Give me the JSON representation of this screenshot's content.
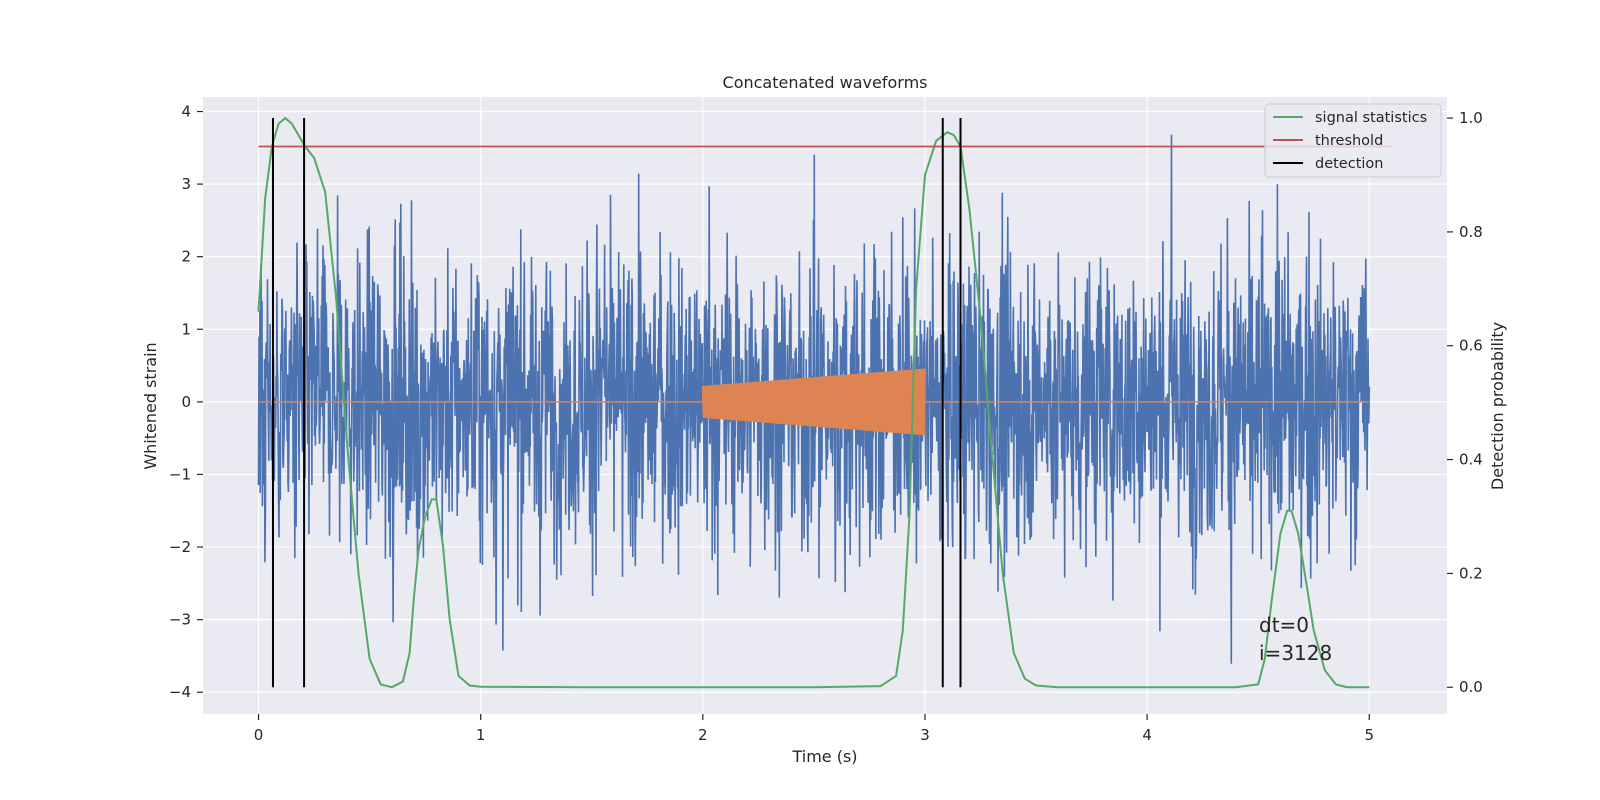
{
  "chart_data": {
    "type": "line",
    "title": "Concatenated waveforms",
    "xlabel": "Time (s)",
    "ylabel": "Whitened strain",
    "ylabel_right": "Detection probability",
    "xlim": [
      -0.25,
      5.35
    ],
    "ylim": [
      -4.3,
      4.2
    ],
    "ylim_right": [
      -0.047,
      1.037
    ],
    "x_ticks": [
      0,
      1,
      2,
      3,
      4,
      5
    ],
    "x_tick_labels": [
      "0",
      "1",
      "2",
      "3",
      "4",
      "5"
    ],
    "y_ticks": [
      -4,
      -3,
      -2,
      -1,
      0,
      1,
      2,
      3,
      4
    ],
    "y_tick_labels": [
      "−4",
      "−3",
      "−2",
      "−1",
      "0",
      "1",
      "2",
      "3",
      "4"
    ],
    "y_right_ticks": [
      0.0,
      0.2,
      0.4,
      0.6,
      0.8,
      1.0
    ],
    "y_right_tick_labels": [
      "0.0",
      "0.2",
      "0.4",
      "0.6",
      "0.8",
      "1.0"
    ],
    "grid": true,
    "legend_position": "top-right",
    "series": [
      {
        "name": "",
        "kind": "whitened_strain_noise",
        "axis": "left",
        "color": "#4c72b0",
        "x_range": [
          0,
          5
        ],
        "typical_amplitude": 1.0,
        "max_peak": 3.8,
        "min_peak": -3.9
      },
      {
        "name": "",
        "kind": "injected_chirp",
        "axis": "left",
        "color": "#dd8452",
        "x_range": [
          0,
          5
        ],
        "chirp_x_range": [
          2.0,
          3.0
        ],
        "chirp_amplitude_start": 0.22,
        "chirp_amplitude_end": 0.46
      },
      {
        "name": "signal statistics",
        "axis": "right",
        "color": "#55a868",
        "x": [
          0,
          0.03,
          0.06,
          0.09,
          0.12,
          0.15,
          0.18,
          0.21,
          0.25,
          0.3,
          0.35,
          0.4,
          0.45,
          0.5,
          0.55,
          0.6,
          0.65,
          0.68,
          0.7,
          0.72,
          0.75,
          0.78,
          0.8,
          0.83,
          0.86,
          0.9,
          0.95,
          1.0,
          1.5,
          2.0,
          2.5,
          2.8,
          2.87,
          2.9,
          2.93,
          2.96,
          3.0,
          3.05,
          3.1,
          3.13,
          3.16,
          3.2,
          3.25,
          3.3,
          3.35,
          3.4,
          3.45,
          3.5,
          3.6,
          4.0,
          4.4,
          4.5,
          4.53,
          4.56,
          4.6,
          4.63,
          4.65,
          4.68,
          4.71,
          4.75,
          4.8,
          4.85,
          4.9,
          5.0
        ],
        "values": [
          0.66,
          0.86,
          0.95,
          0.99,
          1.0,
          0.99,
          0.97,
          0.95,
          0.93,
          0.87,
          0.68,
          0.42,
          0.2,
          0.05,
          0.005,
          0.0,
          0.01,
          0.06,
          0.16,
          0.24,
          0.3,
          0.33,
          0.33,
          0.25,
          0.12,
          0.02,
          0.003,
          0.001,
          0.0,
          0.0,
          0.0,
          0.002,
          0.02,
          0.1,
          0.3,
          0.7,
          0.9,
          0.96,
          0.975,
          0.97,
          0.95,
          0.84,
          0.65,
          0.42,
          0.2,
          0.06,
          0.015,
          0.003,
          0.0,
          0.0,
          0.0,
          0.005,
          0.05,
          0.15,
          0.27,
          0.31,
          0.31,
          0.27,
          0.2,
          0.1,
          0.03,
          0.005,
          0.0,
          0.0
        ]
      },
      {
        "name": "threshold",
        "axis": "right",
        "color": "#c44e52",
        "x": [
          0,
          5.1
        ],
        "values": [
          0.95,
          0.95
        ]
      },
      {
        "name": "detection",
        "axis": "right",
        "color": "#000000",
        "kind": "vertical_lines",
        "x": [
          0.065,
          0.205,
          3.08,
          3.16
        ],
        "y_range": [
          0.0,
          1.0
        ]
      }
    ],
    "annotations": [
      "dt=0",
      "i=3128"
    ]
  }
}
